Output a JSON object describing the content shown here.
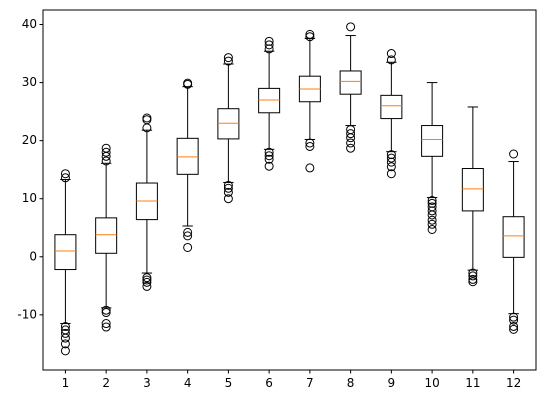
{
  "chart_data": {
    "type": "box",
    "title": "",
    "xlabel": "",
    "ylabel": "",
    "ylim": [
      -19.5,
      42.5
    ],
    "y_ticks": [
      -10,
      0,
      10,
      20,
      30,
      40
    ],
    "y_tick_labels": [
      "-10",
      "0",
      "10",
      "20",
      "30",
      "40"
    ],
    "categories": [
      "1",
      "2",
      "3",
      "4",
      "5",
      "6",
      "7",
      "8",
      "9",
      "10",
      "11",
      "12"
    ],
    "grid": false,
    "colors": {
      "box": "#000000",
      "median": "#ff7f0e",
      "axes": "#000000"
    },
    "boxes": [
      {
        "label": "1",
        "whislo": -11.5,
        "q1": -2.2,
        "med": 1.0,
        "q3": 3.8,
        "whishi": 13.3,
        "fliers": [
          -12,
          -12.6,
          -13.2,
          -14,
          -15,
          -16.2,
          13.6,
          14.3
        ]
      },
      {
        "label": "2",
        "whislo": -8.8,
        "q1": 0.6,
        "med": 3.8,
        "q3": 6.7,
        "whishi": 16.1,
        "fliers": [
          -9.2,
          -9.6,
          -11.5,
          -12.1,
          16.5,
          17.3,
          18,
          18.7
        ]
      },
      {
        "label": "3",
        "whislo": -2.8,
        "q1": 6.4,
        "med": 9.6,
        "q3": 12.7,
        "whishi": 21.8,
        "fliers": [
          -3.6,
          -4,
          -4.4,
          -5.1,
          22.2,
          23.6,
          23.9
        ]
      },
      {
        "label": "4",
        "whislo": 5.3,
        "q1": 14.2,
        "med": 17.2,
        "q3": 20.4,
        "whishi": 29.3,
        "fliers": [
          4.2,
          3.6,
          1.6,
          29.7,
          29.9
        ]
      },
      {
        "label": "5",
        "whislo": 12.8,
        "q1": 20.3,
        "med": 23.0,
        "q3": 25.5,
        "whishi": 33.2,
        "fliers": [
          12.3,
          11.8,
          11.1,
          10,
          33.7,
          34.3
        ]
      },
      {
        "label": "6",
        "whislo": 18.5,
        "q1": 24.8,
        "med": 27.0,
        "q3": 29.0,
        "whishi": 35.4,
        "fliers": [
          18,
          17.4,
          16.8,
          15.6,
          35.8,
          36.5,
          37.1
        ]
      },
      {
        "label": "7",
        "whislo": 20.2,
        "q1": 26.7,
        "med": 28.9,
        "q3": 31.1,
        "whishi": 37.6,
        "fliers": [
          19.6,
          19,
          15.3,
          37.9,
          38.3
        ]
      },
      {
        "label": "8",
        "whislo": 22.6,
        "q1": 28.0,
        "med": 30.2,
        "q3": 32.0,
        "whishi": 38.1,
        "fliers": [
          21.9,
          21.2,
          20.5,
          19.6,
          18.7,
          39.6
        ]
      },
      {
        "label": "9",
        "whislo": 18.1,
        "q1": 23.8,
        "med": 26.0,
        "q3": 27.8,
        "whishi": 33.5,
        "fliers": [
          17.6,
          17,
          16.3,
          15.5,
          14.3,
          33.9,
          35
        ]
      },
      {
        "label": "10",
        "whislo": 10.2,
        "q1": 17.3,
        "med": 20.2,
        "q3": 22.6,
        "whishi": 30.0,
        "fliers": [
          9.7,
          9.2,
          8.6,
          7.9,
          7.2,
          6.3,
          5.6,
          4.7
        ]
      },
      {
        "label": "11",
        "whislo": -2.3,
        "q1": 7.9,
        "med": 11.7,
        "q3": 15.2,
        "whishi": 25.8,
        "fliers": [
          -2.8,
          -3.3,
          -3.9,
          -4.3
        ]
      },
      {
        "label": "12",
        "whislo": -9.8,
        "q1": -0.1,
        "med": 3.6,
        "q3": 6.9,
        "whishi": 16.4,
        "fliers": [
          -10.4,
          -10.9,
          -12,
          -12.5,
          17.7
        ]
      }
    ]
  }
}
